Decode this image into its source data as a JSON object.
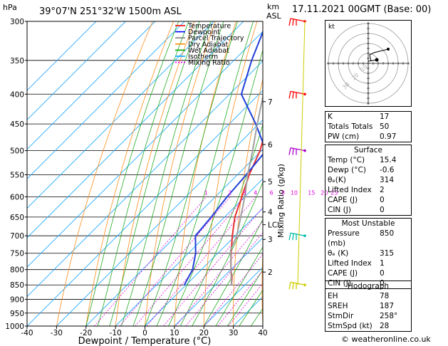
{
  "header": {
    "location": "39°07'N  251°32'W  1500m  ASL",
    "datetime": "17.11.2021  00GMT  (Base: 00)",
    "hpa_label": "hPa",
    "km_label": "km",
    "asl_label": "ASL"
  },
  "chart_data": {
    "type": "line",
    "xlabel": "Dewpoint / Temperature (°C)",
    "ylabel": "hPa",
    "right_ylabel": "Mixing Ratio (g/kg)",
    "xlim": [
      -40,
      40
    ],
    "ylim": [
      1000,
      300
    ],
    "x_ticks": [
      "-40",
      "-30",
      "-20",
      "-10",
      "0",
      "10",
      "20",
      "30",
      "40"
    ],
    "pressure_ticks": [
      "300",
      "350",
      "400",
      "450",
      "500",
      "550",
      "600",
      "650",
      "700",
      "750",
      "800",
      "850",
      "900",
      "950",
      "1000"
    ],
    "km_ticks": [
      {
        "label": "7",
        "p": 412
      },
      {
        "label": "6",
        "p": 488
      },
      {
        "label": "5",
        "p": 565
      },
      {
        "label": "4",
        "p": 637
      },
      {
        "label": "LCL",
        "p": 670
      },
      {
        "label": "3",
        "p": 710
      },
      {
        "label": "2",
        "p": 808
      }
    ],
    "mixing_ratio_labels": [
      "1",
      "2",
      "3",
      "4",
      "6",
      "8",
      "10",
      "15",
      "20",
      "25"
    ],
    "legend": [
      "Temperature",
      "Dewpoint",
      "Parcel Trajectory",
      "Dry Adiabat",
      "Wet Adiabat",
      "Isotherm",
      "Mixing Ratio"
    ],
    "legend_colors": [
      "#ff0000",
      "#0000ff",
      "#808080",
      "#ff8c00",
      "#00aa00",
      "#00aaff",
      "#ff00ff"
    ],
    "series": [
      {
        "name": "Temperature",
        "color": "#e83030",
        "points": [
          [
            15.4,
            850
          ],
          [
            13.0,
            825
          ],
          [
            10.0,
            800
          ],
          [
            4.5,
            750
          ],
          [
            -1.0,
            700
          ],
          [
            -6.5,
            650
          ],
          [
            -11.0,
            600
          ],
          [
            -16.0,
            550
          ],
          [
            -20.5,
            500
          ],
          [
            -27.0,
            450
          ],
          [
            -33.5,
            400
          ],
          [
            -41.5,
            350
          ],
          [
            -50.0,
            300
          ]
        ]
      },
      {
        "name": "Dewpoint",
        "color": "#1f3fd8",
        "points": [
          [
            -0.6,
            850
          ],
          [
            -3.0,
            800
          ],
          [
            -7.5,
            750
          ],
          [
            -13.5,
            700
          ],
          [
            -14.5,
            650
          ],
          [
            -16.0,
            600
          ],
          [
            -17.0,
            550
          ],
          [
            -18.5,
            500
          ],
          [
            -31.0,
            450
          ],
          [
            -46.0,
            400
          ],
          [
            -54.0,
            350
          ],
          [
            -62.0,
            300
          ]
        ]
      },
      {
        "name": "Parcel Trajectory",
        "color": "#a0a0a0",
        "points": [
          [
            15.4,
            850
          ],
          [
            10.0,
            800
          ],
          [
            3.2,
            740
          ],
          [
            0.5,
            700
          ],
          [
            -4.5,
            650
          ],
          [
            -10.0,
            600
          ],
          [
            -16.5,
            550
          ],
          [
            -23.0,
            500
          ],
          [
            -30.5,
            450
          ],
          [
            -38.5,
            400
          ],
          [
            -47.5,
            350
          ],
          [
            -57.0,
            300
          ]
        ]
      }
    ],
    "wind_barbs": [
      {
        "p": 300,
        "color": "#ff0000"
      },
      {
        "p": 400,
        "color": "#ff0000"
      },
      {
        "p": 500,
        "color": "#aa00cc"
      },
      {
        "p": 700,
        "color": "#00bbaa"
      },
      {
        "p": 850,
        "color": "#cccc00"
      }
    ],
    "grid": true
  },
  "hodograph": {
    "label": "kt",
    "ring_labels": [
      "10",
      "20",
      "30"
    ]
  },
  "indices": {
    "rows": [
      {
        "label": "K",
        "value": "17"
      },
      {
        "label": "Totals Totals",
        "value": "50"
      },
      {
        "label": "PW (cm)",
        "value": "0.97"
      }
    ]
  },
  "surface": {
    "title": "Surface",
    "rows": [
      {
        "label": "Temp (°C)",
        "value": "15.4"
      },
      {
        "label": "Dewp (°C)",
        "value": "-0.6"
      },
      {
        "label": "θₑ(K)",
        "value": "314"
      },
      {
        "label": "Lifted Index",
        "value": "2"
      },
      {
        "label": "CAPE (J)",
        "value": "0"
      },
      {
        "label": "CIN (J)",
        "value": "0"
      }
    ]
  },
  "most_unstable": {
    "title": "Most Unstable",
    "rows": [
      {
        "label": "Pressure (mb)",
        "value": "850"
      },
      {
        "label": "θₑ (K)",
        "value": "315"
      },
      {
        "label": "Lifted Index",
        "value": "1"
      },
      {
        "label": "CAPE (J)",
        "value": "0"
      },
      {
        "label": "CIN (J)",
        "value": "0"
      }
    ]
  },
  "hodograph_table": {
    "title": "Hodograph",
    "rows": [
      {
        "label": "EH",
        "value": "78"
      },
      {
        "label": "SREH",
        "value": "187"
      },
      {
        "label": "StmDir",
        "value": "258°"
      },
      {
        "label": "StmSpd (kt)",
        "value": "28"
      }
    ]
  },
  "footer": {
    "copyright": "© weatheronline.co.uk"
  }
}
